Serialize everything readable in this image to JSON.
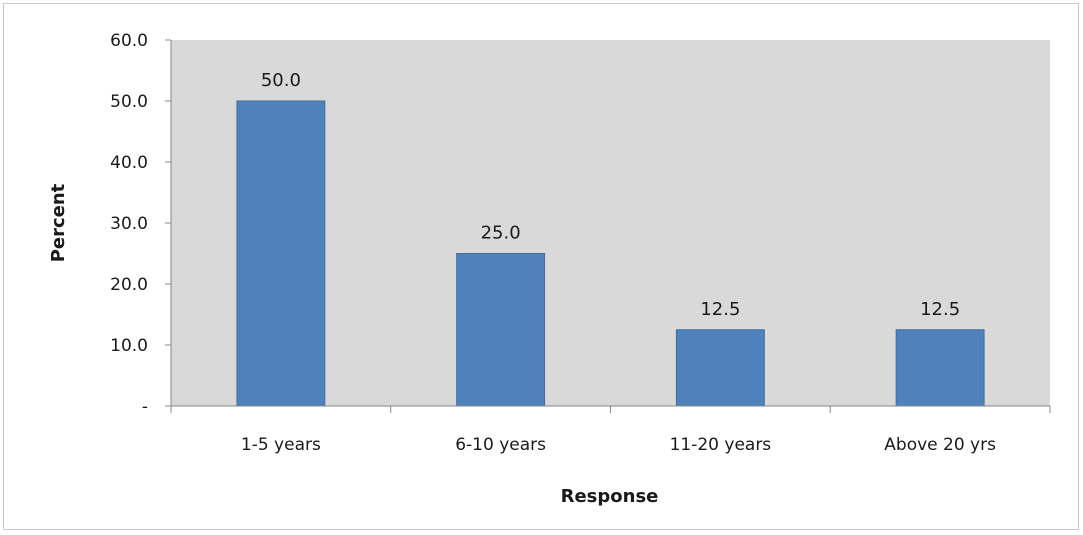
{
  "chart_data": {
    "type": "bar",
    "categories": [
      "1-5 years",
      "6-10 years",
      "11-20 years",
      "Above 20 yrs"
    ],
    "values": [
      50.0,
      25.0,
      12.5,
      12.5
    ],
    "data_labels": [
      "50.0",
      "25.0",
      "12.5",
      "12.5"
    ],
    "title": "",
    "xlabel": "Response",
    "ylabel": "Percent",
    "ylim": [
      0,
      60
    ],
    "yticks": [
      {
        "value": 0,
        "label": "-"
      },
      {
        "value": 10,
        "label": "10.0"
      },
      {
        "value": 20,
        "label": "20.0"
      },
      {
        "value": 30,
        "label": "30.0"
      },
      {
        "value": 40,
        "label": "40.0"
      },
      {
        "value": 50,
        "label": "50.0"
      },
      {
        "value": 60,
        "label": "60.0"
      }
    ],
    "grid": false,
    "legend": "none",
    "colors": {
      "bar": "#4f81bd",
      "bar_edge": "#3f6d9f",
      "plot_background": "#d9d9d9",
      "axis": "#888888"
    }
  }
}
